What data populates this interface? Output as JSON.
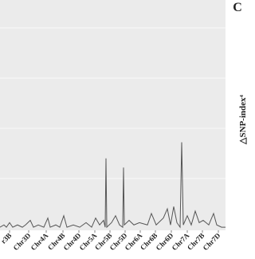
{
  "chart_data": {
    "type": "line",
    "panel_label": "C",
    "y_label": "△SNP-index⁴",
    "x": [
      0,
      5,
      8,
      12,
      16,
      22,
      28,
      32,
      38,
      42,
      48,
      55,
      60,
      63,
      70,
      75,
      80,
      84,
      92,
      100,
      108,
      115,
      120,
      125,
      130,
      132,
      133,
      134,
      140,
      145,
      150,
      154,
      155,
      156,
      162,
      168,
      175,
      185,
      190,
      196,
      205,
      210,
      214,
      218,
      222,
      226,
      228,
      230,
      235,
      240,
      245,
      250,
      255,
      262,
      268,
      272,
      278,
      283
    ],
    "series": [
      {
        "color": "#555555",
        "values": [
          0.01,
          0.02,
          0.01,
          0.03,
          0.01,
          0.02,
          0.01,
          0.02,
          0.04,
          0.01,
          0.02,
          0.01,
          0.05,
          0.01,
          0.02,
          0.01,
          0.06,
          0.01,
          0.02,
          0.01,
          0.03,
          0.01,
          0.05,
          0.02,
          0.04,
          0.01,
          0.31,
          0.01,
          0.03,
          0.06,
          0.02,
          0.01,
          0.27,
          0.02,
          0.04,
          0.02,
          0.03,
          0.02,
          0.07,
          0.02,
          0.05,
          0.09,
          0.02,
          0.1,
          0.03,
          0.01,
          0.38,
          0.02,
          0.06,
          0.02,
          0.08,
          0.03,
          0.04,
          0.02,
          0.07,
          0.02,
          0.01,
          0.01
        ]
      }
    ],
    "xlim": [
      0,
      283
    ],
    "ylim": [
      0,
      1
    ],
    "xticks": [
      {
        "value": 12,
        "label": "r3B"
      },
      {
        "value": 36,
        "label": "Chr3D"
      },
      {
        "value": 58,
        "label": "Chr4A"
      },
      {
        "value": 79,
        "label": "Chr4B"
      },
      {
        "value": 99,
        "label": "Chr4D"
      },
      {
        "value": 119,
        "label": "Chr5A"
      },
      {
        "value": 138,
        "label": "Chr5B"
      },
      {
        "value": 157,
        "label": "Chr5D"
      },
      {
        "value": 176,
        "label": "Chr6A"
      },
      {
        "value": 195,
        "label": "Chr6B"
      },
      {
        "value": 215,
        "label": "Chr6D"
      },
      {
        "value": 235,
        "label": "Chr7A"
      },
      {
        "value": 254,
        "label": "Chr7B"
      },
      {
        "value": 274,
        "label": "Chr7D"
      }
    ]
  }
}
